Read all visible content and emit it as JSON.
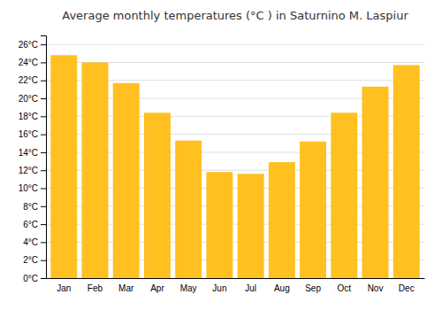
{
  "chart_data": {
    "type": "bar",
    "title": "Average monthly temperatures (°C ) in Saturnino M. Laspiur",
    "categories": [
      "Jan",
      "Feb",
      "Mar",
      "Apr",
      "May",
      "Jun",
      "Jul",
      "Aug",
      "Sep",
      "Oct",
      "Nov",
      "Dec"
    ],
    "values": [
      24.8,
      24.0,
      21.7,
      18.4,
      15.3,
      11.8,
      11.6,
      12.9,
      15.2,
      18.4,
      21.3,
      23.7
    ],
    "color": "#FFC020",
    "ylim": [
      0,
      27
    ],
    "yticks": [
      {
        "value": 0,
        "label": "0°C"
      },
      {
        "value": 2,
        "label": "2°C"
      },
      {
        "value": 4,
        "label": "4°C"
      },
      {
        "value": 6,
        "label": "6°C"
      },
      {
        "value": 8,
        "label": "8°C"
      },
      {
        "value": 10,
        "label": "10°C"
      },
      {
        "value": 12,
        "label": "12°C"
      },
      {
        "value": 14,
        "label": "14°C"
      },
      {
        "value": 16,
        "label": "16°C"
      },
      {
        "value": 18,
        "label": "18°C"
      },
      {
        "value": 20,
        "label": "20°C"
      },
      {
        "value": 22,
        "label": "22°C"
      },
      {
        "value": 24,
        "label": "24°C"
      },
      {
        "value": 26,
        "label": "26°C"
      }
    ],
    "grid": true
  }
}
